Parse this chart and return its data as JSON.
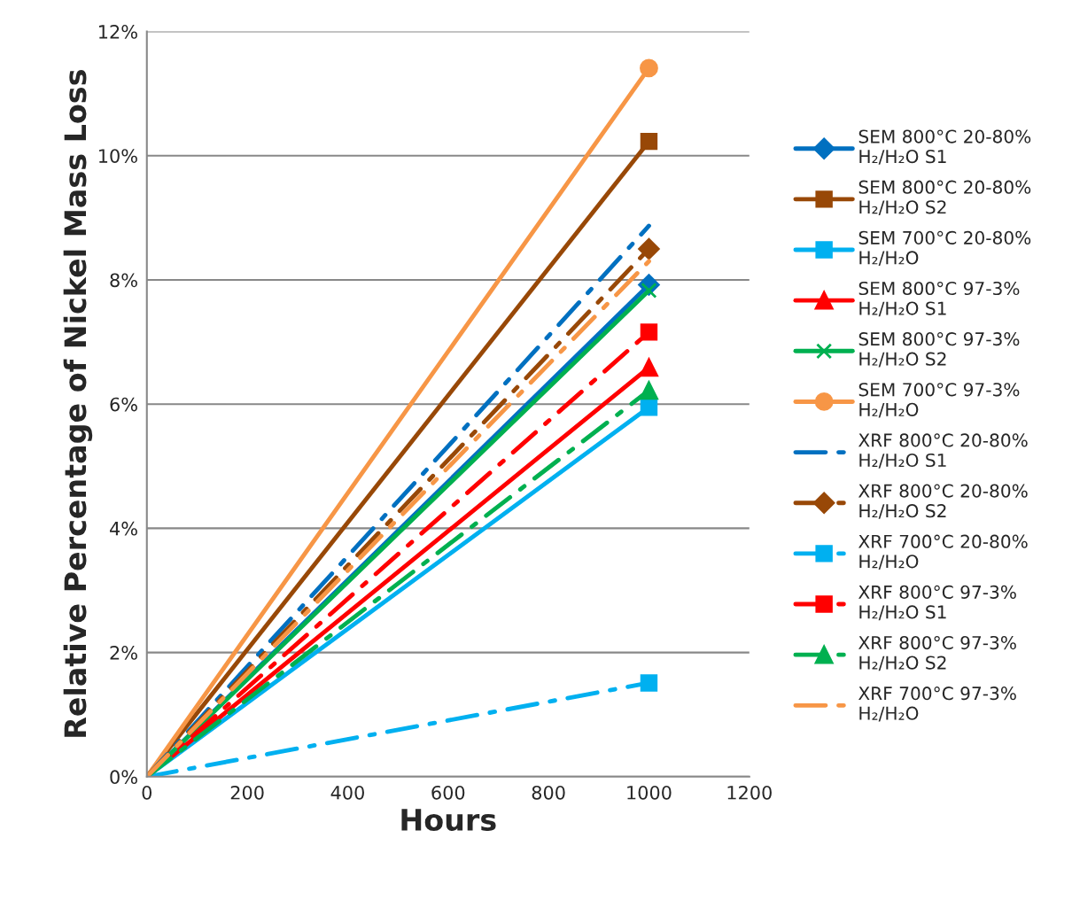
{
  "chart_data": {
    "type": "line",
    "xlabel": "Hours",
    "ylabel": "Relative Percentage of Nickel Mass Loss",
    "x": [
      0,
      1000
    ],
    "xlim": [
      0,
      1200
    ],
    "xticks": [
      0,
      200,
      400,
      600,
      800,
      1000,
      1200
    ],
    "ylim": [
      0,
      12
    ],
    "yticks": [
      {
        "value": 0,
        "label": "0%"
      },
      {
        "value": 2,
        "label": "2%"
      },
      {
        "value": 4,
        "label": "4%"
      },
      {
        "value": 6,
        "label": "6%"
      },
      {
        "value": 8,
        "label": "8%"
      },
      {
        "value": 10,
        "label": "10%"
      },
      {
        "value": 12,
        "label": "12%"
      }
    ],
    "grid": "y",
    "legend": "right",
    "series": [
      {
        "name": "SEM 800°C 20-80%\nH₂/H₂O S1",
        "color": "#0070c0",
        "values": [
          0,
          7.92
        ],
        "marker": "diamond",
        "line_style": "solid"
      },
      {
        "name": "SEM 800°C 20-80%\nH₂/H₂O S2",
        "color": "#984807",
        "values": [
          0,
          10.23
        ],
        "marker": "square",
        "line_style": "solid"
      },
      {
        "name": "SEM 700°C 20-80%\nH₂/H₂O",
        "color": "#00b0f0",
        "values": [
          0,
          5.95
        ],
        "marker": "square",
        "line_style": "solid"
      },
      {
        "name": "SEM 800°C 97-3%\nH₂/H₂O S1",
        "color": "#ff0000",
        "values": [
          0,
          6.59
        ],
        "marker": "triangle",
        "line_style": "solid"
      },
      {
        "name": "SEM 800°C 97-3%\nH₂/H₂O S2",
        "color": "#00b050",
        "values": [
          0,
          7.83
        ],
        "marker": "cross",
        "line_style": "solid"
      },
      {
        "name": "SEM 700°C 97-3%\nH₂/H₂O",
        "color": "#f79646",
        "values": [
          0,
          11.41
        ],
        "marker": "circle",
        "line_style": "solid"
      },
      {
        "name": "XRF 800°C 20-80%\nH₂/H₂O S1",
        "color": "#0070c0",
        "values": [
          0,
          8.87
        ],
        "marker": "none",
        "line_style": "dashed"
      },
      {
        "name": "XRF 800°C 20-80%\nH₂/H₂O S2",
        "color": "#984807",
        "values": [
          0,
          8.5
        ],
        "marker": "diamond",
        "line_style": "dashed"
      },
      {
        "name": "XRF 700°C 20-80%\nH₂/H₂O",
        "color": "#00b0f0",
        "values": [
          0,
          1.51
        ],
        "marker": "square",
        "line_style": "dashed"
      },
      {
        "name": "XRF 800°C 97-3%\nH₂/H₂O S1",
        "color": "#ff0000",
        "values": [
          0,
          7.16
        ],
        "marker": "square",
        "line_style": "dashed"
      },
      {
        "name": "XRF 800°C 97-3%\nH₂/H₂O S2",
        "color": "#00b050",
        "values": [
          0,
          6.22
        ],
        "marker": "triangle",
        "line_style": "dashed"
      },
      {
        "name": "XRF 700°C 97-3%\nH₂/H₂O",
        "color": "#f79646",
        "values": [
          0,
          8.3
        ],
        "marker": "none",
        "line_style": "dashed"
      }
    ]
  }
}
